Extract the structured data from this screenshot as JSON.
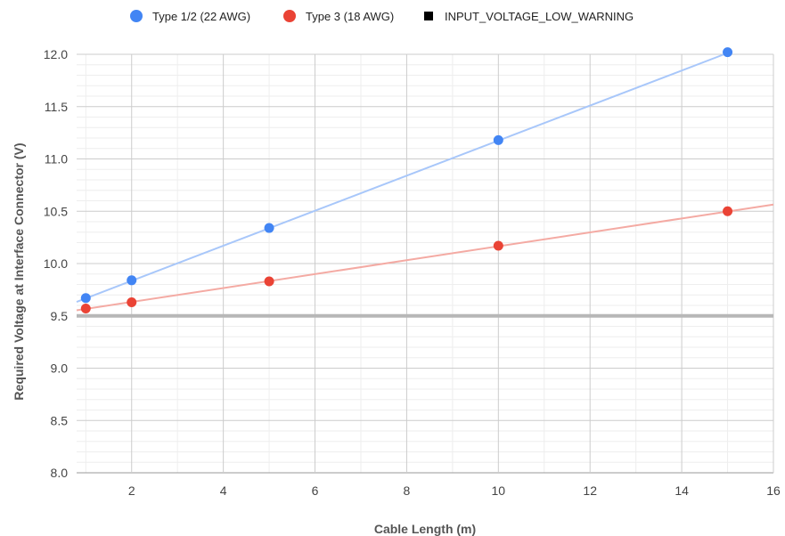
{
  "chart_data": {
    "type": "scatter",
    "title": "",
    "xlabel": "Cable Length (m)",
    "ylabel": "Required Voltage at Interface Connector (V)",
    "xlim": [
      0.8,
      16
    ],
    "ylim": [
      8.0,
      12.0
    ],
    "x_ticks": [
      2,
      4,
      6,
      8,
      10,
      12,
      14,
      16
    ],
    "x_tick_labels": [
      "2",
      "4",
      "6",
      "8",
      "10",
      "12",
      "14",
      "16"
    ],
    "y_ticks": [
      8.0,
      8.5,
      9.0,
      9.5,
      10.0,
      10.5,
      11.0,
      11.5,
      12.0
    ],
    "y_tick_labels": [
      "8.0",
      "8.5",
      "9.0",
      "9.5",
      "10.0",
      "10.5",
      "11.0",
      "11.5",
      "12.0"
    ],
    "grid": true,
    "legend_position": "top",
    "series": [
      {
        "name": "Type 1/2 (22 AWG)",
        "color": "#4285f4",
        "trendline_color": "#a8c7fa",
        "x": [
          1,
          2,
          5,
          10,
          15
        ],
        "y": [
          9.67,
          9.84,
          10.34,
          11.18,
          12.02
        ],
        "trendline": {
          "slope": 0.1675,
          "intercept": 9.5
        }
      },
      {
        "name": "Type 3 (18 AWG)",
        "color": "#ea4335",
        "trendline_color": "#f4aaa3",
        "x": [
          1,
          2,
          5,
          10,
          15
        ],
        "y": [
          9.57,
          9.63,
          9.83,
          10.17,
          10.5
        ],
        "trendline": {
          "slope": 0.0665,
          "intercept": 9.5
        }
      }
    ],
    "reference_line": {
      "name": "INPUT_VOLTAGE_LOW_WARNING",
      "y": 9.5,
      "color": "#b7b7b7",
      "legend_color": "#000000"
    }
  }
}
